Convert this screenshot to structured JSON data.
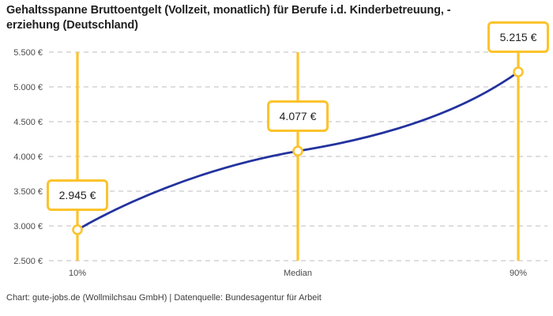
{
  "title": {
    "line1": "Gehaltsspanne Bruttoentgelt (Vollzeit, monatlich) für Berufe i.d. Kinderbetreuung, -",
    "line2": "erziehung (Deutschland)"
  },
  "footer": "Chart: gute-jobs.de (Wollmilchsau GmbH) | Datenquelle: Bundesagentur für Arbeit",
  "chart_data": {
    "type": "line",
    "title": "Gehaltsspanne Bruttoentgelt (Vollzeit, monatlich) für Berufe i.d. Kinderbetreuung, -erziehung (Deutschland)",
    "categories": [
      "10%",
      "Median",
      "90%"
    ],
    "values": [
      2945,
      4077,
      5215
    ],
    "value_labels": [
      "2.945 €",
      "4.077 €",
      "5.215 €"
    ],
    "ylim": [
      2500,
      5500
    ],
    "ytick_values": [
      2500,
      3000,
      3500,
      4000,
      4500,
      5000,
      5500
    ],
    "ytick_labels": [
      "2.500 €",
      "3.000 €",
      "3.500 €",
      "4.000 €",
      "4.500 €",
      "5.000 €",
      "5.500 €"
    ],
    "grid": "horizontal-dashed",
    "legend": "none",
    "colors": {
      "line": "#23339e",
      "accent_yellow": "#fcc32c",
      "marker_fill": "#ffffff",
      "grid": "#c9c9c9",
      "axis_text": "#4a4a4a"
    }
  }
}
